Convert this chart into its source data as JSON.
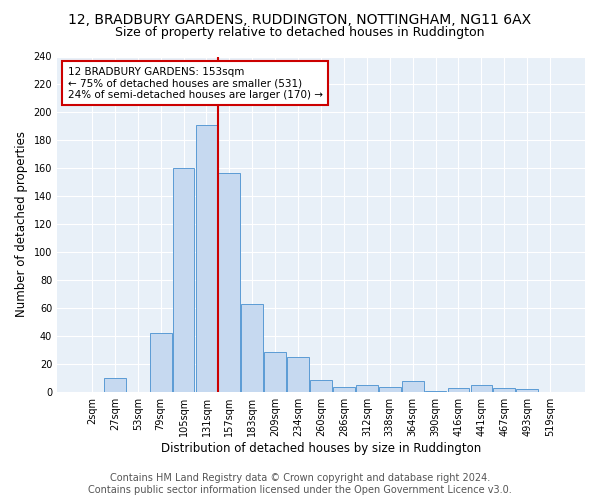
{
  "title": "12, BRADBURY GARDENS, RUDDINGTON, NOTTINGHAM, NG11 6AX",
  "subtitle": "Size of property relative to detached houses in Ruddington",
  "xlabel": "Distribution of detached houses by size in Ruddington",
  "ylabel": "Number of detached properties",
  "footer_line1": "Contains HM Land Registry data © Crown copyright and database right 2024.",
  "footer_line2": "Contains public sector information licensed under the Open Government Licence v3.0.",
  "bar_labels": [
    "2sqm",
    "27sqm",
    "53sqm",
    "79sqm",
    "105sqm",
    "131sqm",
    "157sqm",
    "183sqm",
    "209sqm",
    "234sqm",
    "260sqm",
    "286sqm",
    "312sqm",
    "338sqm",
    "364sqm",
    "390sqm",
    "416sqm",
    "441sqm",
    "467sqm",
    "493sqm",
    "519sqm"
  ],
  "bar_values": [
    0,
    10,
    0,
    42,
    160,
    191,
    157,
    63,
    29,
    25,
    9,
    4,
    5,
    4,
    8,
    1,
    3,
    5,
    3,
    2,
    0
  ],
  "bar_color": "#c6d9f0",
  "bar_edge_color": "#5b9bd5",
  "vline_x_index": 6,
  "vline_color": "#cc0000",
  "annotation_text": "12 BRADBURY GARDENS: 153sqm\n← 75% of detached houses are smaller (531)\n24% of semi-detached houses are larger (170) →",
  "annotation_box_color": "#cc0000",
  "annotation_text_color": "#000000",
  "background_color": "#e8f0f8",
  "ylim": [
    0,
    240
  ],
  "yticks": [
    0,
    20,
    40,
    60,
    80,
    100,
    120,
    140,
    160,
    180,
    200,
    220,
    240
  ],
  "title_fontsize": 10,
  "subtitle_fontsize": 9,
  "xlabel_fontsize": 8.5,
  "ylabel_fontsize": 8.5,
  "tick_fontsize": 7,
  "footer_fontsize": 7,
  "ann_fontsize": 7.5
}
